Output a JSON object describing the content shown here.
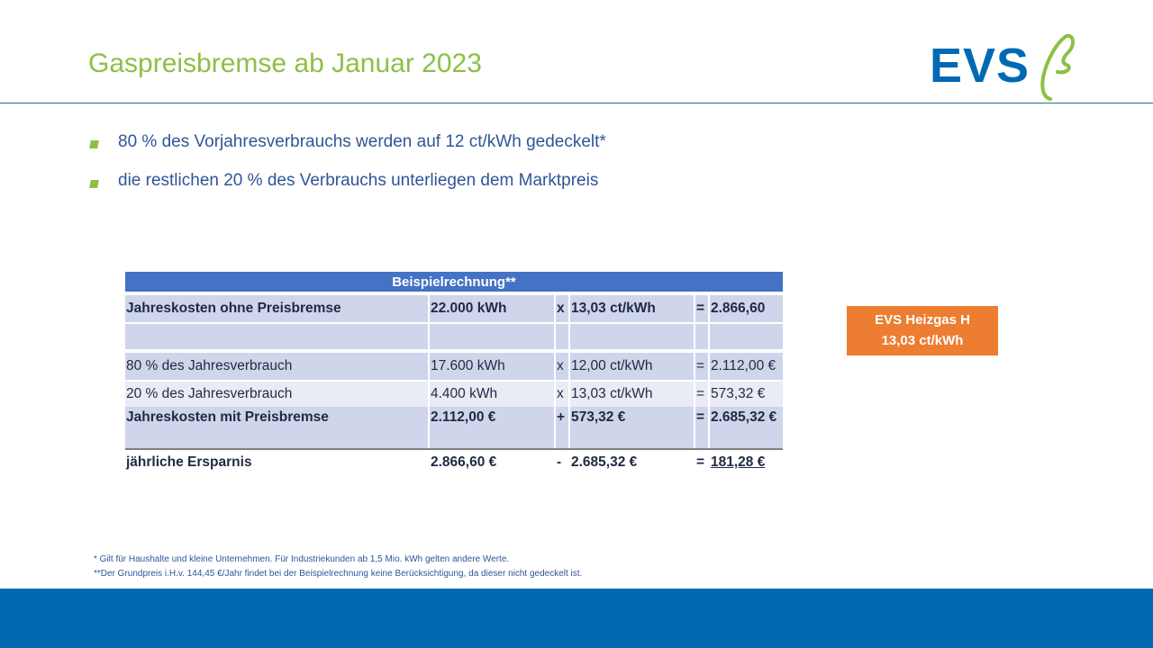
{
  "header": {
    "title": "Gaspreisbremse ab Januar 2023",
    "logo": "EVS"
  },
  "bullets": [
    "80 % des Vorjahresverbrauchs werden auf 12 ct/kWh gedeckelt*",
    "die restlichen 20 % des Verbrauchs unterliegen dem Marktpreis"
  ],
  "table": {
    "title": "Beispielrechnung**",
    "rows": [
      [
        "Jahreskosten ohne Preisbremse",
        "22.000 kWh",
        "x",
        "13,03 ct/kWh",
        "=",
        "2.866,60"
      ],
      [
        "80 % des Jahresverbrauch",
        "17.600 kWh",
        "x",
        "12,00 ct/kWh",
        "=",
        "2.112,00 €"
      ],
      [
        "20 % des Jahresverbrauch",
        "4.400 kWh",
        "x",
        "13,03 ct/kWh",
        "=",
        "573,32 €"
      ],
      [
        "Jahreskosten mit Preisbremse",
        "2.112,00 €",
        "+",
        "573,32 €",
        "=",
        "2.685,32 €"
      ],
      [
        "jährliche Ersparnis",
        "2.866,60 €",
        "-",
        "2.685,32 €",
        "=",
        "181,28 €"
      ]
    ]
  },
  "badge": {
    "lines": [
      "EVS Heizgas H",
      "13,03 ct/kWh"
    ]
  },
  "footnotes": [
    "* Gilt für Haushalte und kleine Unternehmen.  Für Industriekunden ab 1,5 Mio. kWh gelten andere Werte.",
    "**Der  Grundpreis i.H.v. 144,45 €/Jahr findet bei der Beispielrechnung keine Berücksichtigung, da dieser nicht gedeckelt  ist."
  ]
}
